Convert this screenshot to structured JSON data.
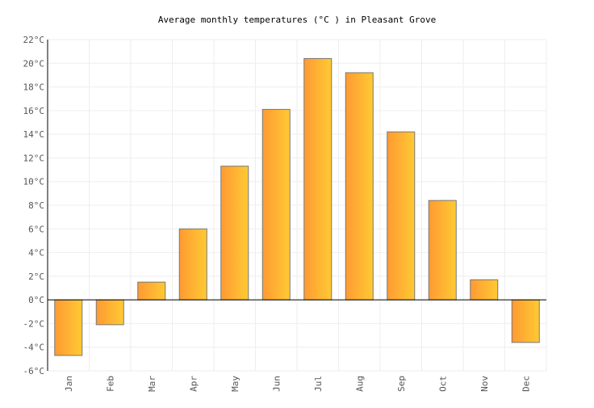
{
  "chart_data": {
    "type": "bar",
    "title": "Average monthly temperatures (°C ) in Pleasant Grove",
    "xlabel": "",
    "ylabel": "",
    "unit": "°C",
    "ylim": [
      -6,
      22
    ],
    "ytick_step": 2,
    "grid": true,
    "categories": [
      "Jan",
      "Feb",
      "Mar",
      "Apr",
      "May",
      "Jun",
      "Jul",
      "Aug",
      "Sep",
      "Oct",
      "Nov",
      "Dec"
    ],
    "values": [
      -4.7,
      -2.1,
      1.5,
      6.0,
      11.3,
      16.1,
      20.4,
      19.2,
      14.2,
      8.4,
      1.7,
      -3.6
    ],
    "colors": {
      "bar_start": "#ff9a33",
      "bar_end": "#ffca33",
      "bar_stroke": "#777777",
      "grid": "#eeeeee"
    }
  }
}
